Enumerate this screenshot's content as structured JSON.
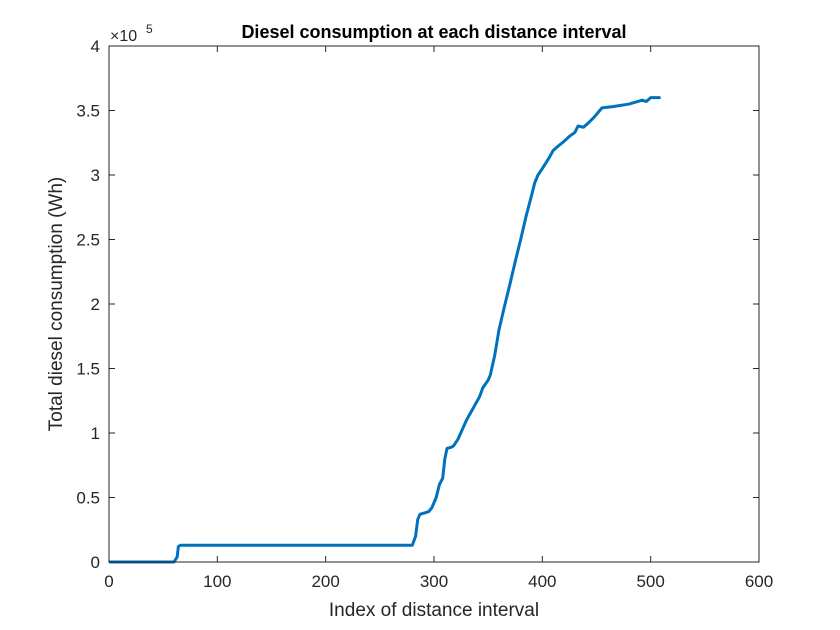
{
  "chart_data": {
    "type": "line",
    "title": "Diesel consumption at each distance interval",
    "xlabel": "Index of distance interval",
    "ylabel": "Total diesel consumption (Wh)",
    "xlim": [
      0,
      600
    ],
    "ylim": [
      0,
      400000
    ],
    "x_ticks": [
      0,
      100,
      200,
      300,
      400,
      500,
      600
    ],
    "x_tick_labels": [
      "0",
      "100",
      "200",
      "300",
      "400",
      "500",
      "600"
    ],
    "y_ticks": [
      0,
      50000,
      100000,
      150000,
      200000,
      250000,
      300000,
      350000,
      400000
    ],
    "y_tick_labels": [
      "0",
      "0.5",
      "1",
      "1.5",
      "2",
      "2.5",
      "3",
      "3.5",
      "4"
    ],
    "y_exponent": {
      "base": "×10",
      "power": "5"
    },
    "grid": false,
    "box": true,
    "series_color": "#0072BD",
    "series": [
      {
        "x": [
          1,
          60,
          63,
          64,
          66,
          100,
          200,
          280,
          283,
          285,
          287,
          295,
          298,
          302,
          305,
          308,
          310,
          312,
          316,
          318,
          322,
          330,
          338,
          342,
          345,
          350,
          352,
          356,
          360,
          365,
          370,
          375,
          380,
          385,
          390,
          393,
          396,
          400,
          403,
          406,
          410,
          414,
          420,
          425,
          430,
          433,
          438,
          442,
          448,
          455,
          465,
          480,
          492,
          496,
          500,
          502,
          508
        ],
        "y": [
          0,
          0,
          4000,
          12000,
          13000,
          13000,
          13000,
          13000,
          20000,
          33000,
          37000,
          39000,
          42000,
          50000,
          60000,
          65000,
          80000,
          88000,
          89000,
          90000,
          95000,
          110000,
          122000,
          128000,
          135000,
          141000,
          145000,
          160000,
          180000,
          198000,
          215000,
          233000,
          250000,
          268000,
          284000,
          294000,
          300000,
          305000,
          309000,
          313000,
          319000,
          322000,
          326000,
          330000,
          333000,
          338000,
          337000,
          340000,
          345000,
          352000,
          353000,
          355000,
          358000,
          357000,
          360000,
          360000,
          360000
        ]
      }
    ]
  }
}
